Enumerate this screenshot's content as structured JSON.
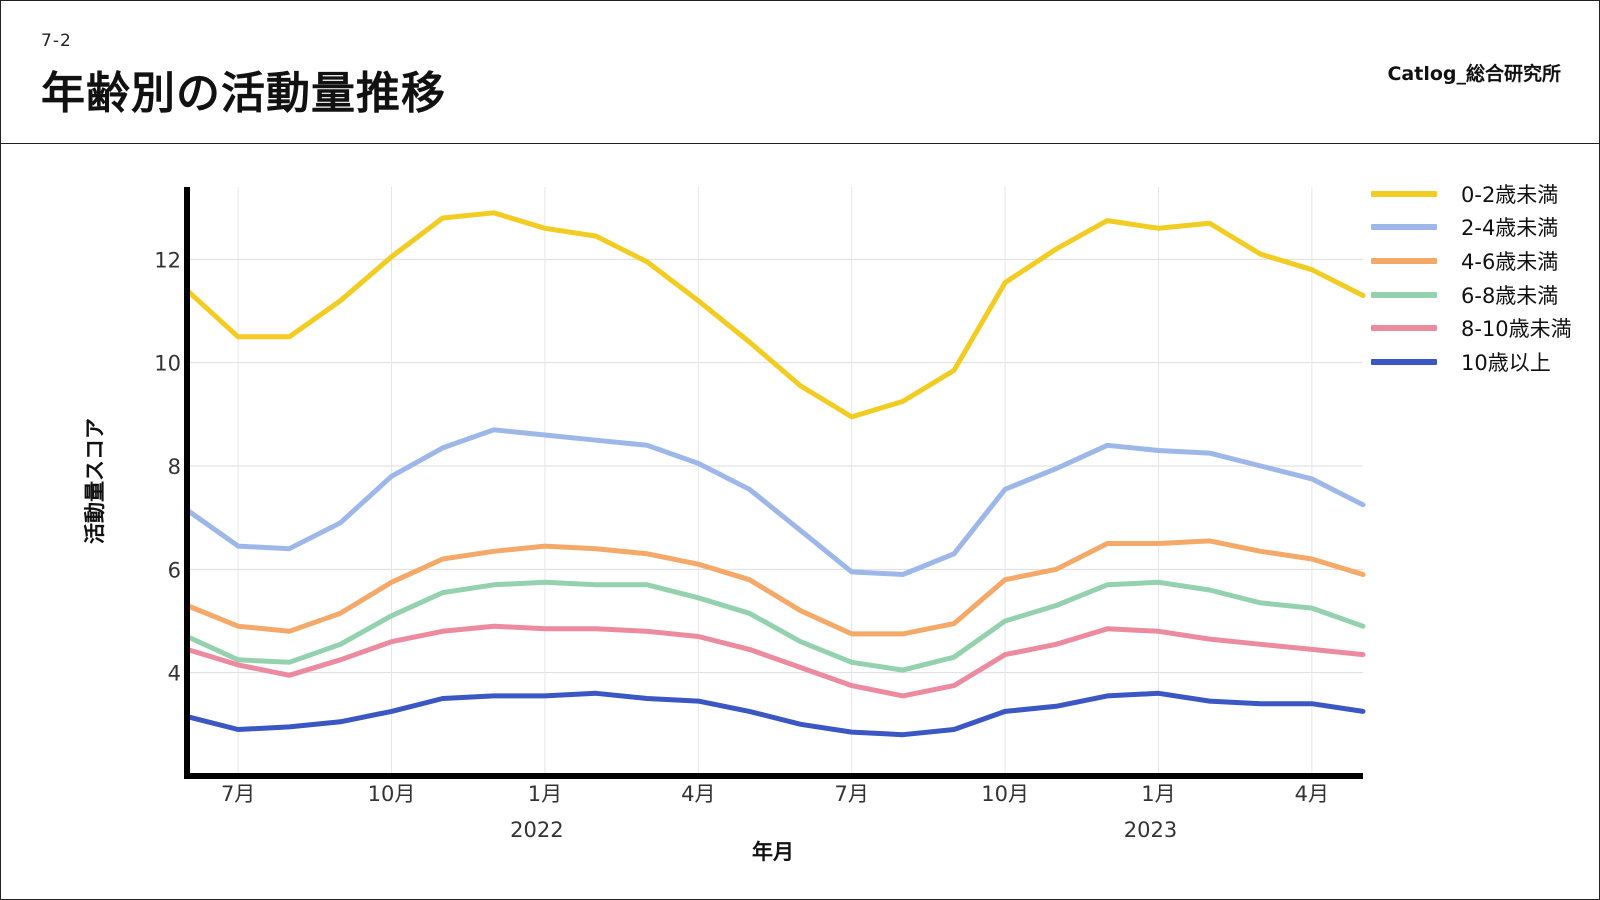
{
  "header": {
    "section": "7-2",
    "title": "年齢別の活動量推移",
    "brand": "Catlog_総合研究所"
  },
  "chart_data": {
    "type": "line",
    "title": "",
    "xlabel": "年月",
    "ylabel": "活動量スコア",
    "ylim": [
      2.0,
      13.4
    ],
    "yticks": [
      4,
      6,
      8,
      10,
      12
    ],
    "grid": true,
    "legend_position": "top-right",
    "x": [
      "2021-06",
      "2021-07",
      "2021-08",
      "2021-09",
      "2021-10",
      "2021-11",
      "2021-12",
      "2022-01",
      "2022-02",
      "2022-03",
      "2022-04",
      "2022-05",
      "2022-06",
      "2022-07",
      "2022-08",
      "2022-09",
      "2022-10",
      "2022-11",
      "2022-12",
      "2023-01",
      "2023-02",
      "2023-03",
      "2023-04",
      "2023-05"
    ],
    "x_tick_labels": [
      {
        "x": "2021-07",
        "label": "7月"
      },
      {
        "x": "2021-10",
        "label": "10月"
      },
      {
        "x": "2022-01",
        "label": "1月"
      },
      {
        "x": "2022-04",
        "label": "4月"
      },
      {
        "x": "2022-07",
        "label": "7月"
      },
      {
        "x": "2022-10",
        "label": "10月"
      },
      {
        "x": "2023-01",
        "label": "1月"
      },
      {
        "x": "2023-04",
        "label": "4月"
      }
    ],
    "x_year_labels": [
      {
        "x": "2022-01",
        "label": "2022"
      },
      {
        "x": "2023-01",
        "label": "2023"
      }
    ],
    "series": [
      {
        "name": "0-2歳未満",
        "color": "#F2CC20",
        "values": [
          11.4,
          10.5,
          10.5,
          11.2,
          12.05,
          12.8,
          12.9,
          12.6,
          12.45,
          11.95,
          11.2,
          10.4,
          9.55,
          8.95,
          9.25,
          9.85,
          11.55,
          12.2,
          12.75,
          12.6,
          12.7,
          12.1,
          11.8,
          11.3
        ]
      },
      {
        "name": "2-4歳未満",
        "color": "#9DB8E8",
        "values": [
          7.15,
          6.45,
          6.4,
          6.9,
          7.8,
          8.35,
          8.7,
          8.6,
          8.5,
          8.4,
          8.05,
          7.55,
          6.75,
          5.95,
          5.9,
          6.3,
          7.55,
          7.95,
          8.4,
          8.3,
          8.25,
          8.0,
          7.75,
          7.25
        ]
      },
      {
        "name": "4-6歳未満",
        "color": "#F4A968",
        "values": [
          5.3,
          4.9,
          4.8,
          5.15,
          5.75,
          6.2,
          6.35,
          6.45,
          6.4,
          6.3,
          6.1,
          5.8,
          5.2,
          4.75,
          4.75,
          4.95,
          5.8,
          6.0,
          6.5,
          6.5,
          6.55,
          6.35,
          6.2,
          5.9
        ]
      },
      {
        "name": "6-8歳未満",
        "color": "#94D1AE",
        "values": [
          4.7,
          4.25,
          4.2,
          4.55,
          5.1,
          5.55,
          5.7,
          5.75,
          5.7,
          5.7,
          5.45,
          5.15,
          4.6,
          4.2,
          4.05,
          4.3,
          5.0,
          5.3,
          5.7,
          5.75,
          5.6,
          5.35,
          5.25,
          4.9
        ]
      },
      {
        "name": "8-10歳未満",
        "color": "#EC8AA0",
        "values": [
          4.45,
          4.15,
          3.95,
          4.25,
          4.6,
          4.8,
          4.9,
          4.85,
          4.85,
          4.8,
          4.7,
          4.45,
          4.1,
          3.75,
          3.55,
          3.75,
          4.35,
          4.55,
          4.85,
          4.8,
          4.65,
          4.55,
          4.45,
          4.35
        ]
      },
      {
        "name": "10歳以上",
        "color": "#3A57C4",
        "values": [
          3.15,
          2.9,
          2.95,
          3.05,
          3.25,
          3.5,
          3.55,
          3.55,
          3.6,
          3.5,
          3.45,
          3.25,
          3.0,
          2.85,
          2.8,
          2.9,
          3.25,
          3.35,
          3.55,
          3.6,
          3.45,
          3.4,
          3.4,
          3.25
        ]
      }
    ]
  }
}
